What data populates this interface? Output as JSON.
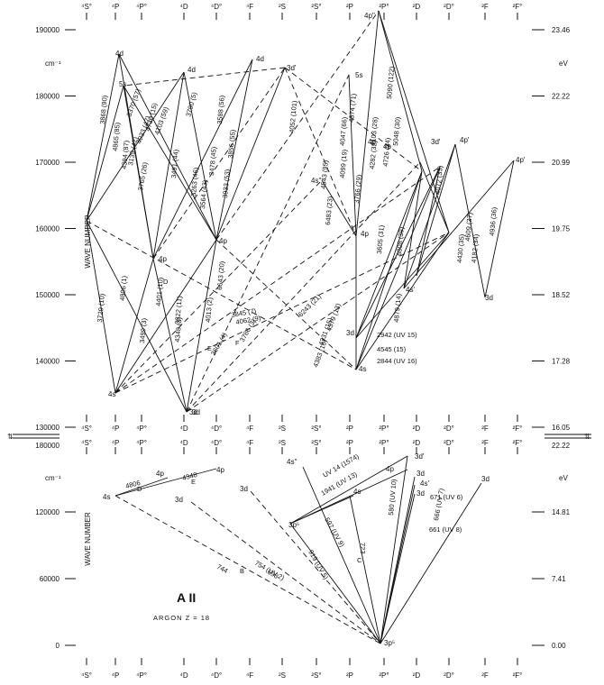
{
  "title": "A II",
  "subtitle": "ARGON Z = 18",
  "y_axis_label": "WAVE NUMBER",
  "left_unit": "cm⁻¹",
  "right_unit": "eV",
  "term_columns": [
    "⁴S°",
    "⁴P",
    "⁴P°",
    "⁴D",
    "⁴D°",
    "⁴F",
    "²S",
    "²S°",
    "²P",
    "²P°",
    "²D",
    "²D°",
    "²F",
    "²F°"
  ],
  "upper_panel": {
    "wave_ticks": [
      "190000",
      "180000",
      "170000",
      "160000",
      "150000",
      "140000",
      "130000"
    ],
    "ev_ticks": [
      "23.46",
      "22.22",
      "20.99",
      "19.75",
      "18.52",
      "17.28",
      "16.05"
    ],
    "levels": [
      "4d",
      "5s",
      "4d",
      "4d",
      "3d'",
      "5s",
      "4p''",
      "4s''",
      "4p",
      "3d'",
      "4p'",
      "4p'",
      "4p",
      "4p",
      "4p",
      "4p",
      "3d",
      "4s'",
      "3d",
      "3d",
      "4s",
      "4s",
      "3d"
    ],
    "transitions": [
      "3868 (90)",
      "4865 (85)",
      "4394 (87)",
      "3370 (57)",
      "4103 (59)",
      "4033 (47)",
      "3139 (42)",
      "3765 (26)",
      "3491 (44)",
      "4730 (15)",
      "3780 (5)",
      "3588 (56)",
      "3478 (45)",
      "3856 (55)",
      "3263 (46)",
      "3564 (43)",
      "3933 (53)",
      "4052 (101)",
      "4374 (71)",
      "4047 (66)",
      "5090 (122)",
      "4099 (19)",
      "4543 (95)",
      "6483 (23)",
      "3766 (29)",
      "4282 (32)",
      "4726 (34)",
      "3605 (31)",
      "4103 (28)",
      "5048 (30)",
      "4072 (33)",
      "4609 (37)",
      "4936 (36)",
      "4182 (34)",
      "4430 (35)",
      "6808 (39)",
      "4879 (14)",
      "3729 (10)",
      "4806 (1)",
      "4401 (10)",
      "3922 (11)",
      "4013 (2)",
      "4348 (3)",
      "3499 (3)",
      "4062 (9)",
      "3845 (7)",
      "3601 (4)",
      "3786 (3)",
      "6643 (20)",
      "6243 (21)",
      "4379 (13)",
      "4331 (15)",
      "4383 (16)",
      "2942 (UV 15)",
      "4545 (15)",
      "2844 (UV 16)"
    ],
    "markers": [
      "D",
      "E",
      "F"
    ]
  },
  "lower_panel": {
    "wave_ticks": [
      "180000",
      "120000",
      "60000",
      "0"
    ],
    "ev_ticks": [
      "22.22",
      "14.81",
      "7.41",
      "0.00"
    ],
    "levels": [
      "4s",
      "4p",
      "4p",
      "3d",
      "3d",
      "4s''",
      "3p⁵",
      "4s",
      "3d'",
      "4p",
      "3d",
      "4s'",
      "3d",
      "3d",
      "3p⁵"
    ],
    "transitions": [
      "4806",
      "4348",
      "744",
      "754 (UV 2)",
      "698",
      "919 (UV 5)",
      "597 (UV 9)",
      "1941 (UV 13)",
      "UV 14 (1574)",
      "723",
      "580 (UV 10)",
      "671 (UV 6)",
      "661 (UV 8)",
      "666 (UV 7)"
    ],
    "markers": [
      "D",
      "E",
      "B",
      "C"
    ]
  },
  "break_ticks": [
    "130000",
    "180000",
    "16.05",
    "22.22"
  ]
}
